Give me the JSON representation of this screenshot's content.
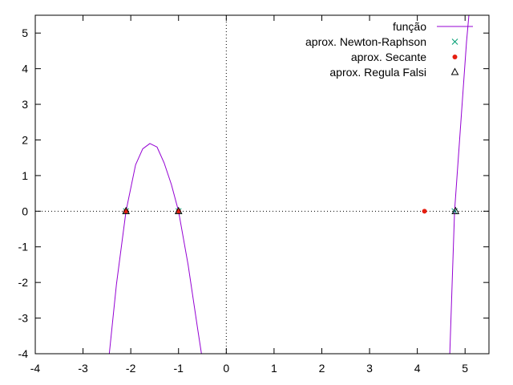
{
  "chart_data": {
    "type": "line",
    "title": "",
    "xlabel": "",
    "ylabel": "",
    "xlim": [
      -4,
      5.5
    ],
    "ylim": [
      -4,
      5.5
    ],
    "x_ticks": [
      -4,
      -3,
      -2,
      -1,
      0,
      1,
      2,
      3,
      4,
      5
    ],
    "y_ticks": [
      -4,
      -3,
      -2,
      -1,
      0,
      1,
      2,
      3,
      4,
      5
    ],
    "x_tick_labels": [
      "-4",
      "-3",
      "-2",
      "-1",
      "0",
      "1",
      "2",
      "3",
      "4",
      "5"
    ],
    "y_tick_labels": [
      "-4",
      "-3",
      "-2",
      "-1",
      "0",
      "1",
      "2",
      "3",
      "4",
      "5"
    ],
    "grid": false,
    "zero_axes": true,
    "legend_position": "top-right",
    "series": [
      {
        "name": "função",
        "kind": "line",
        "color": "#9400d3",
        "segments": [
          {
            "x": [
              -2.45,
              -2.3,
              -2.1,
              -1.9,
              -1.75,
              -1.6,
              -1.45,
              -1.3,
              -1.15,
              -1.0,
              -0.8,
              -0.6,
              -0.52
            ],
            "y": [
              -4.0,
              -2.05,
              0.0,
              1.3,
              1.75,
              1.9,
              1.8,
              1.35,
              0.75,
              0.0,
              -1.5,
              -3.3,
              -4.0
            ]
          },
          {
            "x": [
              4.68,
              4.73,
              4.78,
              4.83,
              4.88,
              4.93,
              4.98,
              5.03,
              5.08
            ],
            "y": [
              -4.0,
              -2.0,
              0.0,
              0.95,
              1.9,
              2.85,
              3.8,
              4.75,
              5.5
            ]
          }
        ]
      },
      {
        "name": "aprox. Newton-Raphson",
        "kind": "points",
        "marker": "cross",
        "color": "#009e73",
        "x": [
          -2.1,
          -1.0,
          4.78
        ],
        "y": [
          0,
          0,
          0
        ]
      },
      {
        "name": "aprox. Secante",
        "kind": "points",
        "marker": "filled-circle",
        "color": "#e51e10",
        "x": [
          -2.1,
          -1.0,
          4.15
        ],
        "y": [
          0,
          0,
          0
        ]
      },
      {
        "name": "aprox. Regula Falsi",
        "kind": "points",
        "marker": "open-triangle",
        "color": "#000000",
        "x": [
          -2.1,
          -1.0,
          4.8
        ],
        "y": [
          0,
          0,
          0
        ]
      }
    ]
  }
}
